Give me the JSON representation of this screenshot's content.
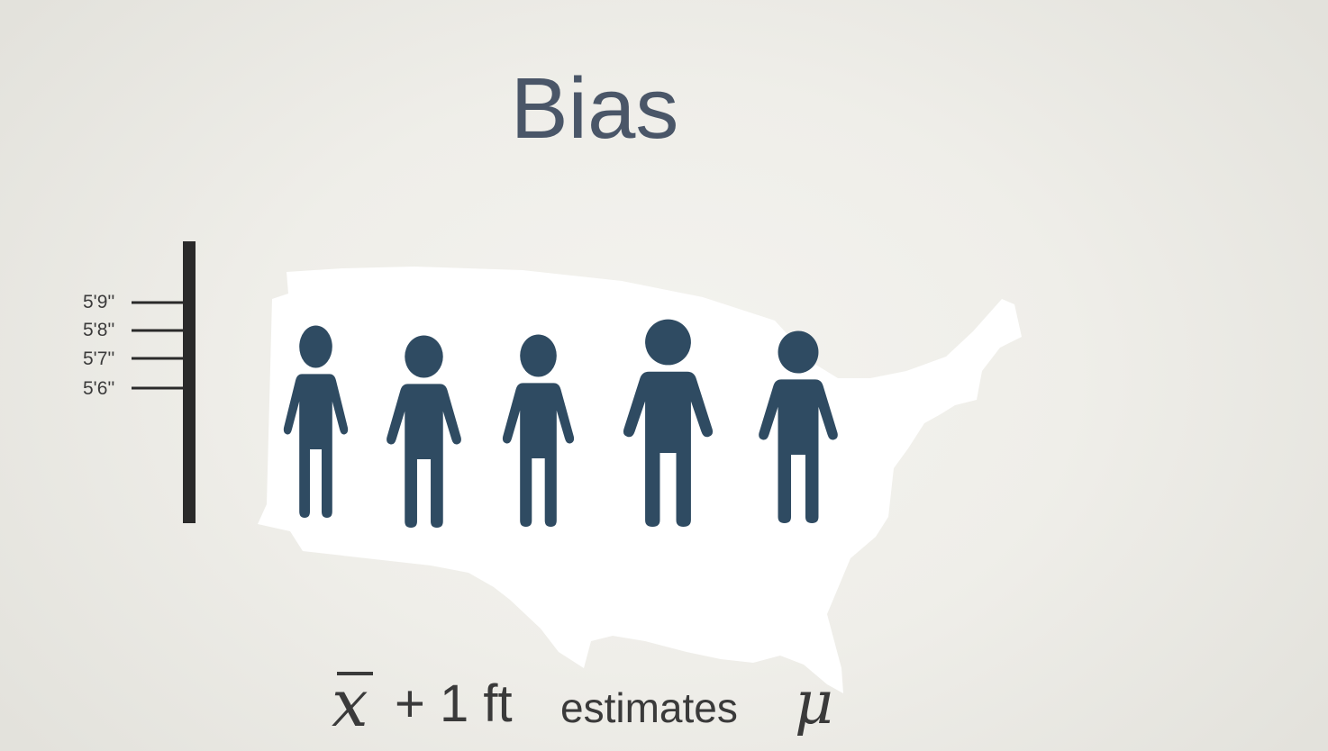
{
  "title": "Bias",
  "ruler": {
    "tick_labels": [
      "5'9''",
      "5'8''",
      "5'7''",
      "5'6''"
    ]
  },
  "formula": {
    "xbar": "x",
    "plus_ft": "+ 1 ft",
    "estimates": "estimates",
    "mu": "μ"
  },
  "colors": {
    "figure": "#2f4b62",
    "map": "#ffffff",
    "ruler": "#2a2a2a",
    "title": "#4a5668"
  },
  "icons": {
    "map": "usa-map-silhouette",
    "person": "person-icon"
  }
}
